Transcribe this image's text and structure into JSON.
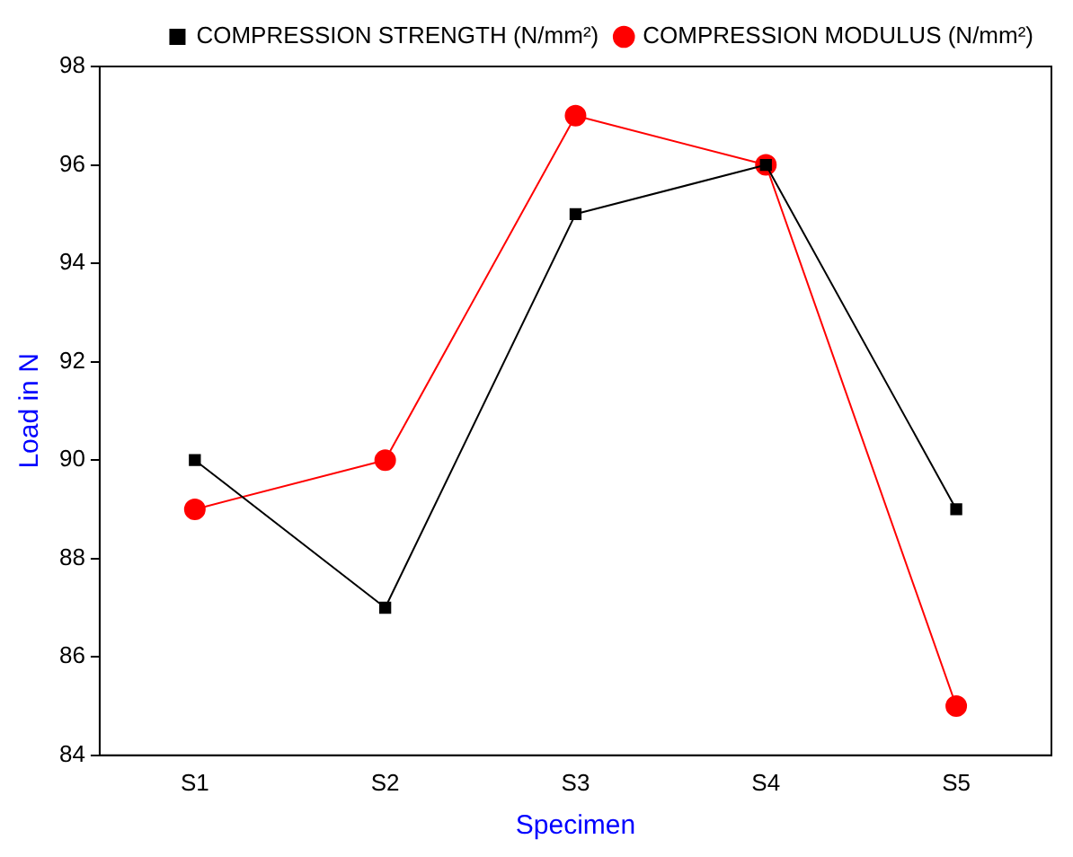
{
  "chart_data": {
    "type": "line",
    "xlabel": "Specimen",
    "ylabel": "Load in N",
    "categories": [
      "S1",
      "S2",
      "S3",
      "S4",
      "S5"
    ],
    "series": [
      {
        "name": "COMPRESSION STRENGTH (N/mm²)",
        "color": "#000000",
        "marker": "square",
        "values": [
          90,
          87,
          95,
          96,
          89
        ]
      },
      {
        "name": "COMPRESSION MODULUS (N/mm²)",
        "color": "#ff0000",
        "marker": "circle",
        "values": [
          89,
          90,
          97,
          96,
          85
        ]
      }
    ],
    "ylim": [
      84,
      98
    ],
    "yticks": [
      84,
      86,
      88,
      90,
      92,
      94,
      96,
      98
    ],
    "grid": false,
    "legend": "top right",
    "line_style": "solid"
  }
}
